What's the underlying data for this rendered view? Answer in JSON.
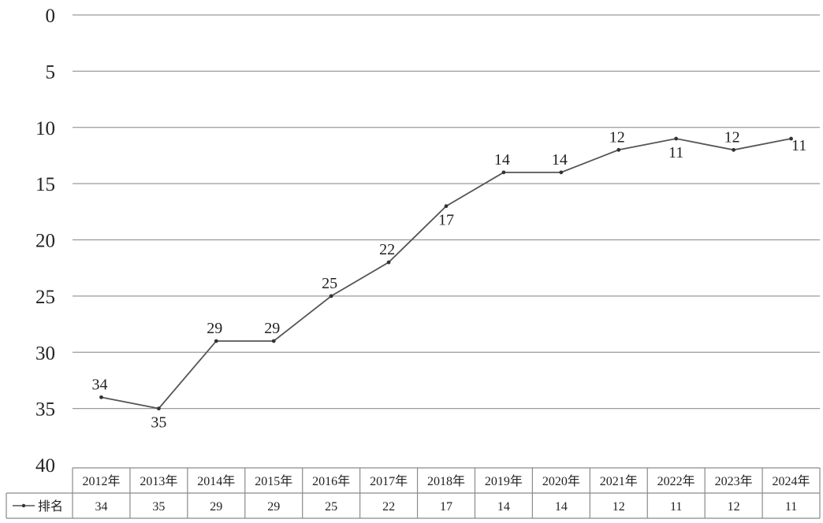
{
  "chart_data": {
    "type": "line",
    "title": "",
    "xlabel": "",
    "ylabel": "",
    "y_inverted": true,
    "ylim": [
      0,
      40
    ],
    "yticks": [
      0,
      5,
      10,
      15,
      20,
      25,
      30,
      35,
      40
    ],
    "grid": true,
    "legend_placement": "table-left",
    "categories": [
      "2012年",
      "2013年",
      "2014年",
      "2015年",
      "2016年",
      "2017年",
      "2018年",
      "2019年",
      "2020年",
      "2021年",
      "2022年",
      "2023年",
      "2024年"
    ],
    "series": [
      {
        "name": "排名",
        "values": [
          34,
          35,
          29,
          29,
          25,
          22,
          17,
          14,
          14,
          12,
          11,
          12,
          11
        ],
        "label_positions": [
          "above",
          "below",
          "above",
          "above",
          "above",
          "above",
          "below",
          "above",
          "above",
          "above",
          "below",
          "above",
          "right"
        ]
      }
    ]
  }
}
